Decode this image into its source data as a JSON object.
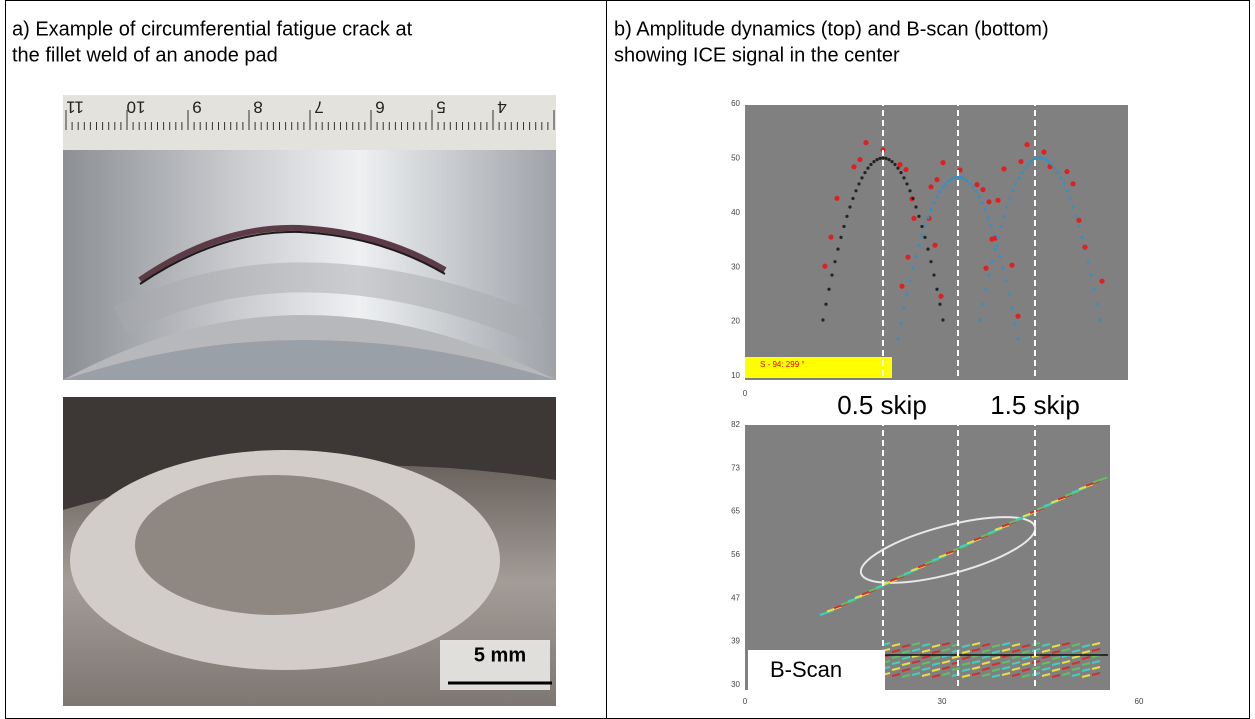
{
  "left": {
    "caption_lines": [
      "a) Example of circumferential fatigue crack at",
      "the fillet weld of an anode pad"
    ],
    "ruler_labels": [
      "11",
      "10",
      "9",
      "8",
      "7",
      "6",
      "5",
      "4"
    ],
    "scale_bar": "5 mm"
  },
  "right": {
    "caption_lines": [
      "b) Amplitude dynamics (top) and B-scan (bottom)",
      "showing ICE signal in the center"
    ],
    "top_chart": {
      "yticks": [
        "60",
        "50",
        "40",
        "30",
        "20",
        "10"
      ],
      "xticks": [
        "0"
      ],
      "marker_label": "S - 94: 299 °",
      "skip_labels": [
        "0.5 skip",
        "1.5 skip"
      ]
    },
    "bottom_chart": {
      "yticks": [
        "82",
        "73",
        "65",
        "56",
        "47",
        "39",
        "30"
      ],
      "xticks": [
        "0",
        "30",
        "60"
      ],
      "label": "B-Scan"
    }
  }
}
